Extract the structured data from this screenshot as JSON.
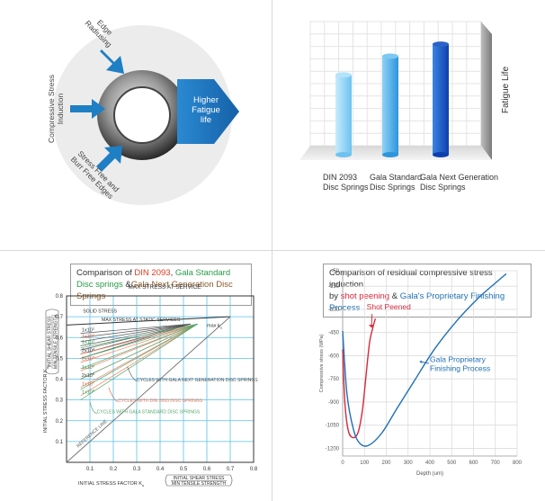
{
  "panel1": {
    "labels": {
      "edge": "Edge\nRadiusing",
      "compressive": "Compressive Stress\nInduction",
      "stress_free": "Stress Free and\nBurr Free Edges",
      "result": "Higher\nFatigue\nlife"
    },
    "colors": {
      "arrow": "#1e7fc4",
      "result_arrow": "#1c7ec8",
      "disc_bg": "#e8e8e8"
    }
  },
  "chart_fatigue": {
    "type": "bar",
    "categories": [
      "DIN 2093\nDisc Springs",
      "Gala Standard\nDisc Springs",
      "Gala Next Generation\nDisc Springs"
    ],
    "values": [
      60,
      74,
      83
    ],
    "ylabel": "Fatigue Life",
    "ylim": [
      0,
      100
    ],
    "grid": true,
    "colors": [
      "#8ed3f5",
      "#3fa6e6",
      "#1458c8"
    ]
  },
  "chart_din": {
    "type": "line",
    "title_parts": [
      {
        "text": "Comparison of ",
        "color": "#333333"
      },
      {
        "text": "DIN 2093",
        "color": "#e03a1e"
      },
      {
        "text": ", ",
        "color": "#333333"
      },
      {
        "text": "Gala Standard Disc springs",
        "color": "#2a9a4a"
      },
      {
        "text": " &",
        "color": "#333333"
      },
      {
        "text": "Gala Next Generation Disc Springs",
        "color": "#8a5a2a"
      }
    ],
    "header": "MAX STRESS AT SERVICE",
    "xlabel": "INITIAL STRESS FACTOR K",
    "xlabel_sub": "u",
    "xlabel_frac": [
      "INITIAL SHEAR STRESS",
      "MIN TENSILE STRENGTH"
    ],
    "ylabel": "INITIAL STRESS FACTOR K",
    "ylabel_sub": "u",
    "ylabel_frac": [
      "INITIAL SHEAR STRESS",
      "MIN TENSILE STRENGTH"
    ],
    "xlim": [
      0,
      0.8
    ],
    "ylim": [
      0,
      0.8
    ],
    "x_ticks": [
      "0.1",
      "0.2",
      "0.3",
      "0.4",
      "0.5",
      "0.6",
      "0.7",
      "0.8"
    ],
    "y_ticks": [
      "0.1",
      "0.2",
      "0.3",
      "0.4",
      "0.5",
      "0.6",
      "0.7",
      "0.8"
    ],
    "annotations": {
      "solid": "SOLID STRESS",
      "static": "MAX STRESS AT STATIC SERVICES",
      "kmax": "max k",
      "kmax_sub": "u",
      "next_gen": "CYCLES WITH GALA NEXT GENERATION DISC SPRINGS",
      "din": "CYCLES WITH DIN 2093 DISC SPRINGS",
      "standard": "CYCLES WITH GALA STANDARD DISC SPRINGS",
      "reference": "REFERENCE LINE"
    },
    "cycle_labels": [
      "1x10",
      "1x10",
      "1x10",
      "2x10",
      "2x10",
      "1x10",
      "2x10",
      "1x10",
      "1x10"
    ],
    "cycle_exps": [
      "1",
      "2",
      "3",
      "4",
      "5",
      "6",
      "6",
      "7",
      "8"
    ],
    "series": [
      {
        "name": "static",
        "color": "#333333",
        "x": [
          0,
          0.7
        ],
        "y": [
          0.66,
          0.7
        ]
      },
      {
        "name": "reference",
        "color": "#777777",
        "x": [
          0,
          0.7
        ],
        "y": [
          0,
          0.7
        ]
      },
      {
        "name": "next_gen",
        "color": "#555555",
        "x": [
          0,
          0.52
        ],
        "y": [
          0.62,
          0.66
        ]
      },
      {
        "name": "din",
        "color": "#f08060",
        "x": [
          0,
          0.56
        ],
        "y": [
          0.46,
          0.66
        ]
      },
      {
        "name": "standard",
        "color": "#55a86a",
        "x": [
          0,
          0.56
        ],
        "y": [
          0.5,
          0.66
        ]
      }
    ],
    "colors": {
      "grid": "#5bc0ea",
      "next_gen": "#555555",
      "din": "#f08060",
      "standard": "#55a86a"
    }
  },
  "chart_residual": {
    "type": "line",
    "title_parts": [
      {
        "text": "Comparison of residual compressive stress induction",
        "color": "#333333",
        "br": true
      },
      {
        "text": "by ",
        "color": "#333333"
      },
      {
        "text": "shot peening",
        "color": "#e0243a"
      },
      {
        "text": " & ",
        "color": "#333333"
      },
      {
        "text": "Gala's Proprietary Finishing Process",
        "color": "#1f6fb5"
      }
    ],
    "xlabel": "Depth (um)",
    "ylabel": "Compressive stress (MPa)",
    "xlim": [
      0,
      800
    ],
    "ylim": [
      -1250,
      -50
    ],
    "x_ticks": [
      "0",
      "100",
      "200",
      "300",
      "400",
      "500",
      "600",
      "700",
      "800"
    ],
    "y_ticks": [
      "-50",
      "-150",
      "-300",
      "-450",
      "-600",
      "-750",
      "-900",
      "-1050",
      "-1200"
    ],
    "series": [
      {
        "name": "Shot Peened",
        "color": "#d42a3c",
        "x": [
          0,
          10,
          25,
          45,
          70,
          90,
          105,
          115,
          125,
          140,
          150
        ],
        "y": [
          -560,
          -900,
          -1080,
          -1130,
          -1100,
          -960,
          -760,
          -620,
          -500,
          -410,
          -360
        ]
      },
      {
        "name": "Gala Proprietary\nFinishing Process",
        "color": "#1f6fb5",
        "x": [
          0,
          20,
          50,
          80,
          120,
          180,
          250,
          330,
          420,
          520,
          620,
          700,
          750
        ],
        "y": [
          -440,
          -850,
          -1080,
          -1170,
          -1180,
          -1100,
          -940,
          -760,
          -560,
          -380,
          -230,
          -130,
          -70
        ]
      }
    ],
    "labels": {
      "shot": "Shot Peened",
      "gala": "Gala Proprietary\nFinishing Process"
    },
    "grid": true
  }
}
